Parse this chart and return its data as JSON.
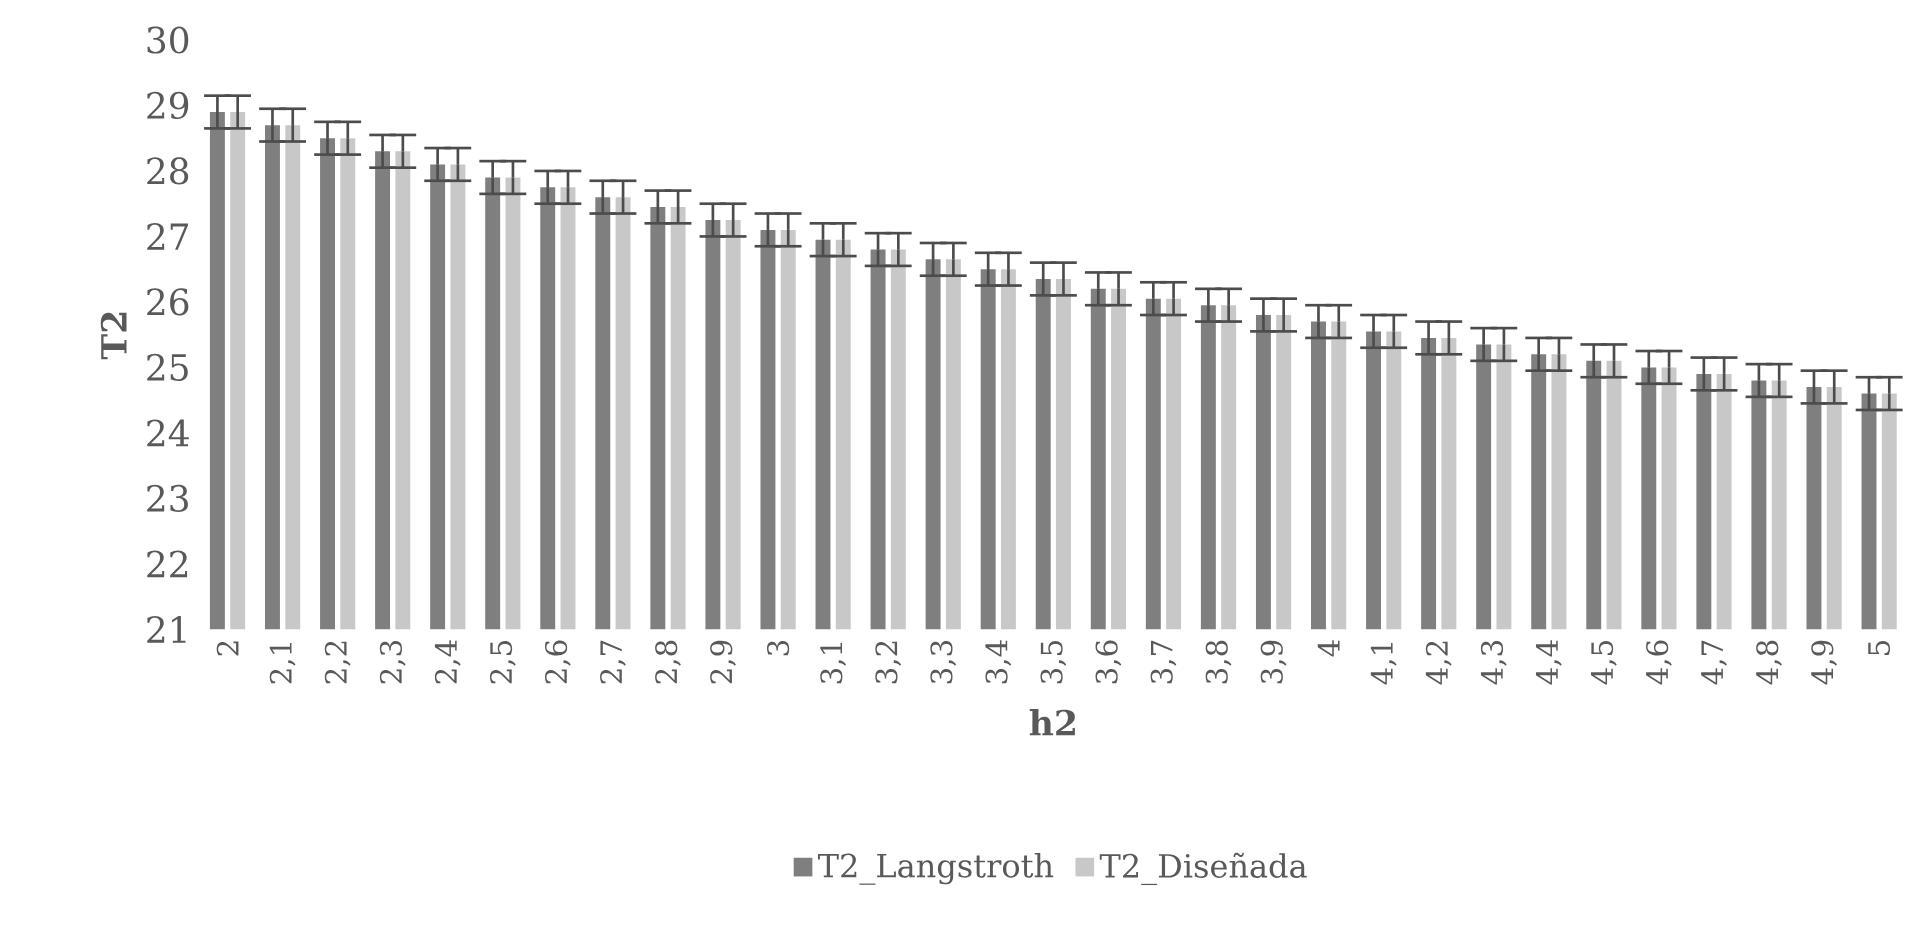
{
  "chart_data": {
    "type": "bar",
    "xlabel": "h2",
    "ylabel": "T2",
    "categories": [
      "2",
      "2,1",
      "2,2",
      "2,3",
      "2,4",
      "2,5",
      "2,6",
      "2,7",
      "2,8",
      "2,9",
      "3",
      "3,1",
      "3,2",
      "3,3",
      "3,4",
      "3,5",
      "3,6",
      "3,7",
      "3,8",
      "3,9",
      "4",
      "4,1",
      "4,2",
      "4,3",
      "4,4",
      "4,5",
      "4,6",
      "4,7",
      "4,8",
      "4,9",
      "5"
    ],
    "series": [
      {
        "name": "T2_Langstroth",
        "color": "#7f7f7f",
        "values": [
          28.9,
          28.7,
          28.5,
          28.3,
          28.1,
          27.9,
          27.75,
          27.6,
          27.45,
          27.25,
          27.1,
          26.95,
          26.8,
          26.65,
          26.5,
          26.35,
          26.2,
          26.05,
          25.95,
          25.8,
          25.7,
          25.55,
          25.45,
          25.35,
          25.2,
          25.1,
          25.0,
          24.9,
          24.8,
          24.7,
          24.6
        ],
        "errors": [
          0.25,
          0.25,
          0.25,
          0.25,
          0.25,
          0.25,
          0.25,
          0.25,
          0.25,
          0.25,
          0.25,
          0.25,
          0.25,
          0.25,
          0.25,
          0.25,
          0.25,
          0.25,
          0.25,
          0.25,
          0.25,
          0.25,
          0.25,
          0.25,
          0.25,
          0.25,
          0.25,
          0.25,
          0.25,
          0.25,
          0.25
        ]
      },
      {
        "name": "T2_Diseñada",
        "color": "#c8c8c8",
        "values": [
          28.9,
          28.7,
          28.5,
          28.3,
          28.1,
          27.9,
          27.75,
          27.6,
          27.45,
          27.25,
          27.1,
          26.95,
          26.8,
          26.65,
          26.5,
          26.35,
          26.2,
          26.05,
          25.95,
          25.8,
          25.7,
          25.55,
          25.45,
          25.35,
          25.2,
          25.1,
          25.0,
          24.9,
          24.8,
          24.7,
          24.6
        ],
        "errors": [
          0.25,
          0.25,
          0.25,
          0.25,
          0.25,
          0.25,
          0.25,
          0.25,
          0.25,
          0.25,
          0.25,
          0.25,
          0.25,
          0.25,
          0.25,
          0.25,
          0.25,
          0.25,
          0.25,
          0.25,
          0.25,
          0.25,
          0.25,
          0.25,
          0.25,
          0.25,
          0.25,
          0.25,
          0.25,
          0.25,
          0.25
        ]
      }
    ],
    "ylim": [
      21,
      30
    ],
    "yticks": [
      21,
      22,
      23,
      24,
      25,
      26,
      27,
      28,
      29,
      30
    ],
    "grid": false,
    "legend": "bottom"
  }
}
